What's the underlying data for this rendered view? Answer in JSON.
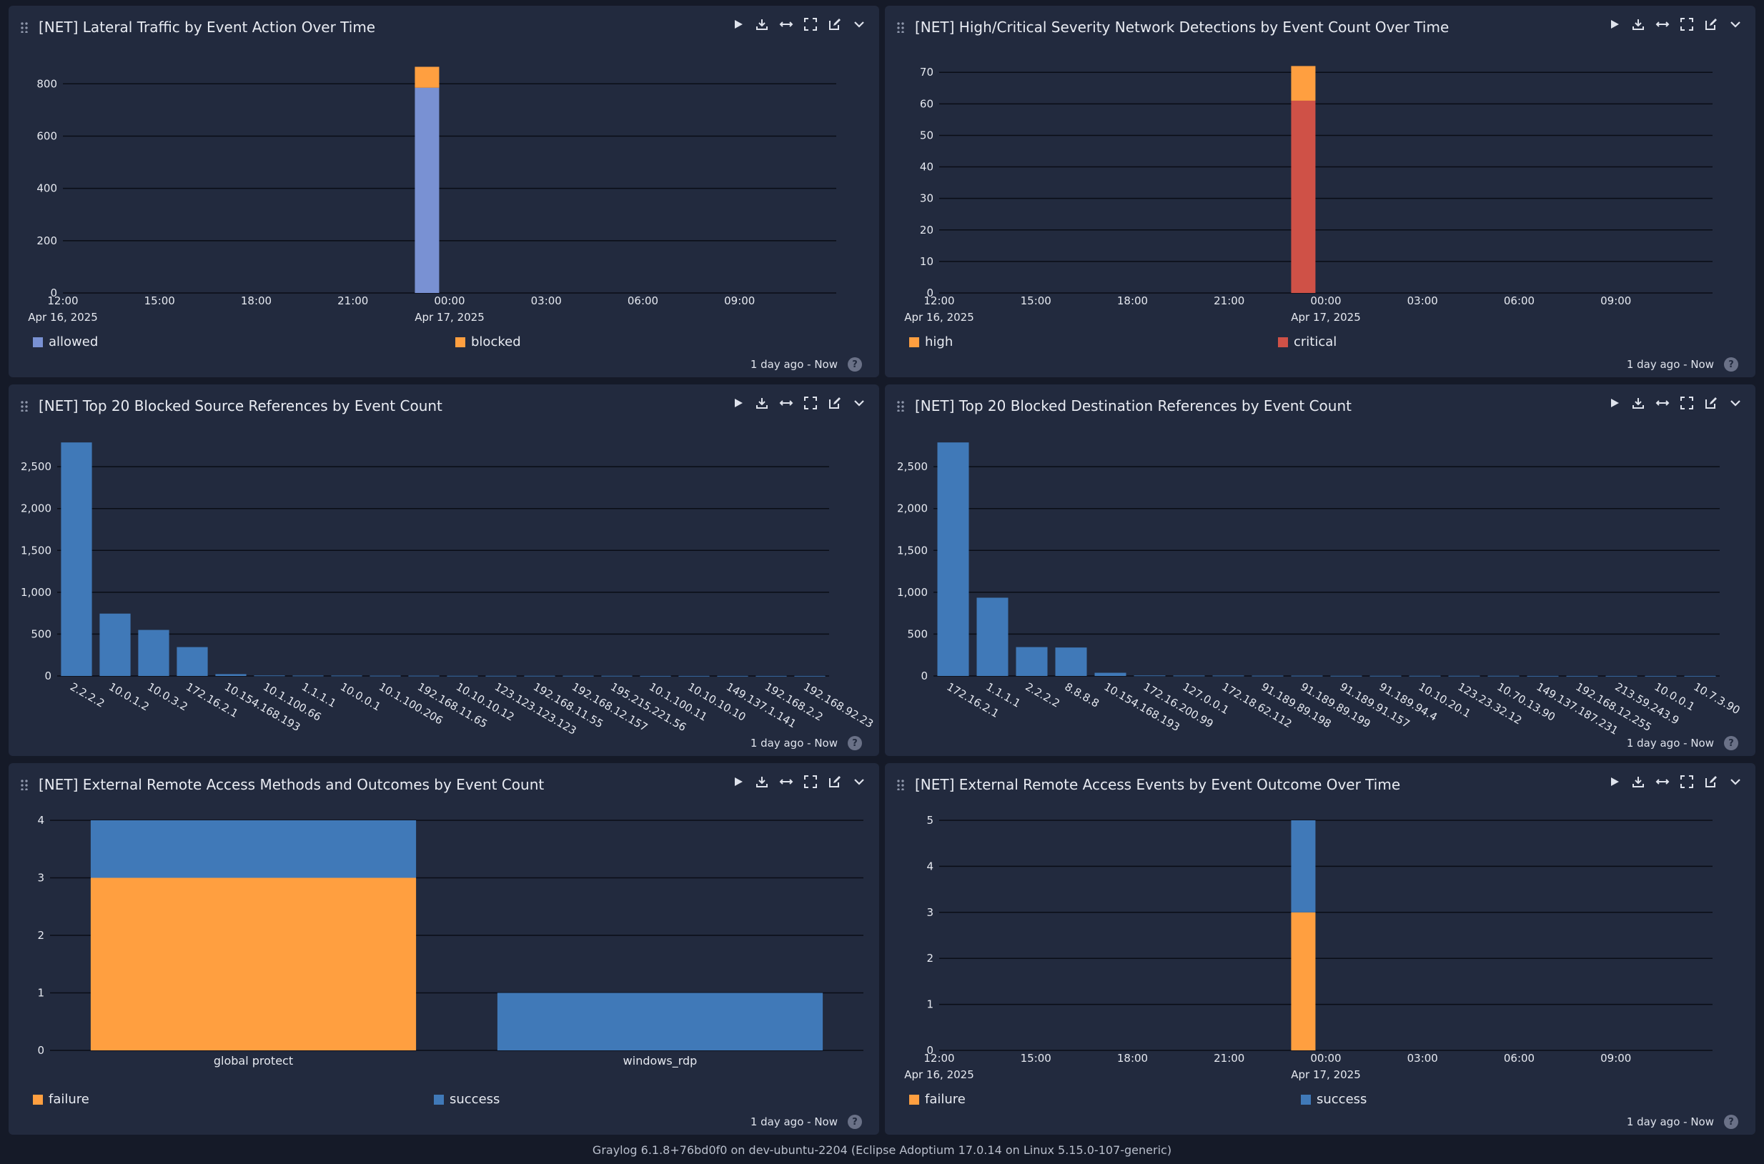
{
  "colors": {
    "allowed": "#7991d3",
    "blocked": "#ff9f40",
    "high": "#ff9f40",
    "critical": "#cf5147",
    "bar": "#4079b8",
    "failure": "#ff9f40",
    "success": "#4079b8"
  },
  "icons": [
    "play-icon",
    "download-icon",
    "expand-width-icon",
    "fullscreen-icon",
    "edit-icon",
    "chevron-down-icon"
  ],
  "time_axis": {
    "ticks": [
      "12:00",
      "15:00",
      "18:00",
      "21:00",
      "00:00",
      "03:00",
      "06:00",
      "09:00"
    ],
    "dates": [
      "Apr 16, 2025",
      "Apr 17, 2025"
    ]
  },
  "panels": [
    {
      "title": "[NET] Lateral Traffic by Event Action Over Time",
      "timerange": "1 day ago - Now",
      "chart_data": {
        "type": "bar",
        "stacked": true,
        "x_axis": "time",
        "ylim": [
          0,
          880
        ],
        "yticks": [
          0,
          200,
          400,
          600,
          800
        ],
        "bar_position_hour": 11.3,
        "series": [
          {
            "name": "allowed",
            "values": [
              785
            ]
          },
          {
            "name": "blocked",
            "values": [
              80
            ]
          }
        ]
      }
    },
    {
      "title": "[NET] High/Critical Severity Network Detections by Event Count Over Time",
      "timerange": "1 day ago - Now",
      "chart_data": {
        "type": "bar",
        "stacked": true,
        "x_axis": "time",
        "ylim": [
          0,
          73
        ],
        "yticks": [
          0,
          10,
          20,
          30,
          40,
          50,
          60,
          70
        ],
        "bar_position_hour": 11.3,
        "series": [
          {
            "name": "critical",
            "values": [
              61
            ]
          },
          {
            "name": "high",
            "values": [
              11
            ]
          }
        ]
      }
    },
    {
      "title": "[NET] Top 20 Blocked Source References by Event Count",
      "timerange": "1 day ago - Now",
      "chart_data": {
        "type": "bar",
        "ylim": [
          0,
          2800
        ],
        "yticks": [
          0,
          500,
          1000,
          1500,
          2000,
          2500
        ],
        "ytick_labels": [
          "0",
          "500",
          "1,000",
          "1,500",
          "2,000",
          "2,500"
        ],
        "categories": [
          "2.2.2.2",
          "10.0.1.2",
          "10.0.3.2",
          "172.16.2.1",
          "10.154.168.193",
          "10.1.100.66",
          "1.1.1.1",
          "10.0.0.1",
          "10.1.100.206",
          "192.168.11.65",
          "10.10.10.12",
          "123.123.123.123",
          "192.168.11.55",
          "192.168.12.157",
          "195.215.221.56",
          "10.1.100.11",
          "10.10.10.10",
          "149.137.1.141",
          "192.168.2.2",
          "192.168.92.23"
        ],
        "values": [
          2790,
          745,
          550,
          345,
          22,
          6,
          5,
          5,
          4,
          4,
          3,
          3,
          3,
          3,
          3,
          2,
          2,
          2,
          2,
          2
        ]
      }
    },
    {
      "title": "[NET] Top 20 Blocked Destination References by Event Count",
      "timerange": "1 day ago - Now",
      "chart_data": {
        "type": "bar",
        "ylim": [
          0,
          2800
        ],
        "yticks": [
          0,
          500,
          1000,
          1500,
          2000,
          2500
        ],
        "ytick_labels": [
          "0",
          "500",
          "1,000",
          "1,500",
          "2,000",
          "2,500"
        ],
        "categories": [
          "172.16.2.1",
          "1.1.1.1",
          "2.2.2.2",
          "8.8.8.8",
          "10.154.168.193",
          "172.16.200.99",
          "127.0.0.1",
          "172.18.62.112",
          "91.189.89.198",
          "91.189.89.199",
          "91.189.91.157",
          "91.189.94.4",
          "10.10.20.1",
          "123.23.32.12",
          "10.70.13.90",
          "149.137.187.231",
          "192.168.12.255",
          "213.59.243.9",
          "10.0.0.1",
          "10.7.3.90"
        ],
        "values": [
          2790,
          935,
          345,
          340,
          38,
          6,
          5,
          5,
          4,
          4,
          3,
          3,
          3,
          3,
          3,
          2,
          2,
          2,
          2,
          2
        ]
      }
    },
    {
      "title": "[NET] External Remote Access Methods and Outcomes by Event Count",
      "timerange": "1 day ago - Now",
      "chart_data": {
        "type": "bar",
        "stacked": true,
        "ylim": [
          0,
          4
        ],
        "yticks": [
          0,
          1,
          2,
          3,
          4
        ],
        "categories": [
          "global protect",
          "windows_rdp"
        ],
        "series": [
          {
            "name": "failure",
            "values": [
              3,
              0
            ]
          },
          {
            "name": "success",
            "values": [
              1,
              1
            ]
          }
        ]
      }
    },
    {
      "title": "[NET] External Remote Access Events by Event Outcome Over Time",
      "timerange": "1 day ago - Now",
      "chart_data": {
        "type": "bar",
        "stacked": true,
        "x_axis": "time",
        "ylim": [
          0,
          5
        ],
        "yticks": [
          0,
          1,
          2,
          3,
          4,
          5
        ],
        "bar_position_hour": 11.3,
        "series": [
          {
            "name": "failure",
            "values": [
              3
            ]
          },
          {
            "name": "success",
            "values": [
              2
            ]
          }
        ]
      }
    }
  ],
  "footer": "Graylog 6.1.8+76bd0f0 on dev-ubuntu-2204 (Eclipse Adoptium 17.0.14 on Linux 5.15.0-107-generic)"
}
